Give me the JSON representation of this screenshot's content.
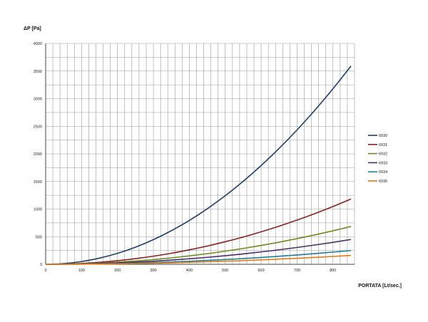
{
  "chart_data": {
    "type": "line",
    "title": "",
    "ylabel": "ΔP [Pa]",
    "xlabel": "PORTATA [Lt/sec.]",
    "xlim": [
      0,
      860
    ],
    "ylim": [
      0,
      4000
    ],
    "xticks": [
      0,
      100,
      200,
      300,
      400,
      500,
      600,
      700,
      800
    ],
    "yticks": [
      0,
      500,
      1000,
      1500,
      2000,
      2500,
      3000,
      3500,
      4000
    ],
    "grid": true,
    "legend_position": "right",
    "x": [
      0,
      50,
      100,
      150,
      200,
      250,
      300,
      350,
      400,
      450,
      500,
      550,
      600,
      650,
      700,
      750,
      800,
      850
    ],
    "series": [
      {
        "name": "6930",
        "color": "#1f3f66",
        "values": [
          0,
          12,
          50,
          112,
          198,
          310,
          447,
          608,
          795,
          1006,
          1242,
          1503,
          1789,
          2099,
          2434,
          2795,
          3180,
          3590
        ]
      },
      {
        "name": "6931",
        "color": "#8b2020",
        "values": [
          0,
          4,
          16,
          37,
          65,
          102,
          147,
          200,
          262,
          331,
          409,
          494,
          589,
          691,
          801,
          920,
          1047,
          1182
        ]
      },
      {
        "name": "6932",
        "color": "#6e8a1e",
        "values": [
          0,
          2,
          10,
          21,
          38,
          59,
          85,
          116,
          152,
          192,
          237,
          287,
          341,
          401,
          465,
          533,
          607,
          685
        ]
      },
      {
        "name": "6933",
        "color": "#4a2d6a",
        "values": [
          0,
          2,
          6,
          14,
          25,
          39,
          56,
          76,
          100,
          126,
          156,
          188,
          224,
          263,
          305,
          350,
          398,
          450
        ]
      },
      {
        "name": "6934",
        "color": "#1f7d99",
        "values": [
          0,
          1,
          3,
          8,
          14,
          22,
          31,
          42,
          55,
          70,
          86,
          104,
          124,
          146,
          169,
          194,
          221,
          250
        ]
      },
      {
        "name": "6935",
        "color": "#e07b17",
        "values": [
          0,
          1,
          2,
          5,
          9,
          14,
          20,
          27,
          36,
          45,
          56,
          67,
          80,
          94,
          109,
          125,
          142,
          160
        ]
      }
    ]
  }
}
